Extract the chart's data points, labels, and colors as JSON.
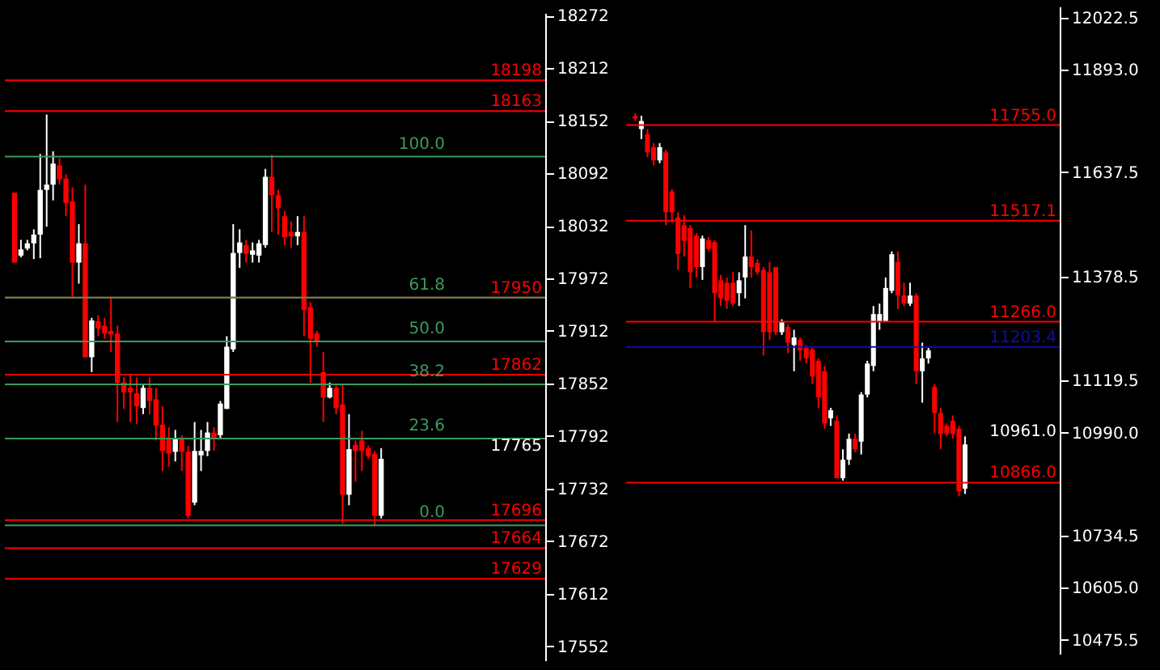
{
  "chart_data": [
    {
      "type": "candlestick",
      "tick_labels": "y",
      "categories": [
        null,
        null,
        null,
        null,
        null,
        null,
        null,
        null,
        null,
        null,
        null,
        null,
        null,
        null,
        null,
        null,
        null,
        null,
        null,
        null,
        null,
        null,
        null,
        null,
        null,
        null,
        null,
        null,
        null,
        null,
        null,
        null,
        null,
        null,
        null,
        null,
        null,
        null,
        null,
        null,
        null,
        null,
        null,
        null,
        null,
        null,
        null,
        null,
        null,
        null,
        null,
        null,
        null,
        null,
        null,
        null,
        null,
        null,
        null,
        null,
        null,
        null,
        null,
        null,
        null,
        null,
        null,
        null,
        null,
        null,
        null,
        null,
        null,
        null,
        null,
        null,
        null,
        null,
        null,
        null,
        null,
        null,
        null,
        null
      ],
      "ohlc": [
        null,
        [
          18070,
          18070,
          17990,
          17990
        ],
        [
          17998,
          18016,
          17996,
          18005
        ],
        [
          18006,
          18016,
          18004,
          18012
        ],
        [
          18012,
          18028,
          17994,
          18022
        ],
        [
          18022,
          18114,
          17995,
          18073
        ],
        [
          18073,
          18159,
          18031,
          18079
        ],
        [
          18079,
          18117,
          18061,
          18103
        ],
        [
          18101,
          18109,
          18079,
          18085
        ],
        [
          18086,
          18091,
          18043,
          18058
        ],
        [
          18060,
          18076,
          17951,
          17990
        ],
        [
          17990,
          18034,
          17966,
          18012
        ],
        [
          18012,
          18079,
          17882,
          17882
        ],
        [
          17882,
          17927,
          17865,
          17924
        ],
        [
          17923,
          17930,
          17906,
          17915
        ],
        [
          17918,
          17927,
          17903,
          17909
        ],
        [
          17912,
          17951,
          17888,
          17908
        ],
        [
          17909,
          17918,
          17808,
          17853
        ],
        [
          17853,
          17859,
          17823,
          17842
        ],
        [
          17847,
          17862,
          17808,
          17842
        ],
        [
          17841,
          17859,
          17806,
          17826
        ],
        [
          17824,
          17850,
          17817,
          17847
        ],
        [
          17847,
          17859,
          17817,
          17832
        ],
        [
          17834,
          17847,
          17787,
          17804
        ],
        [
          17805,
          17826,
          17752,
          17775
        ],
        [
          17790,
          17802,
          17757,
          17772
        ],
        [
          17774,
          17799,
          17763,
          17790
        ],
        [
          17790,
          17793,
          17752,
          17774
        ],
        [
          17774,
          17781,
          17698,
          17701
        ],
        [
          17716,
          17808,
          17713,
          17775
        ],
        [
          17770,
          17799,
          17752,
          17775
        ],
        [
          17775,
          17808,
          17769,
          17796
        ],
        [
          17796,
          17802,
          17775,
          17790
        ],
        [
          17793,
          17832,
          17790,
          17829
        ],
        [
          17823,
          17906,
          17823,
          17894
        ],
        [
          17891,
          18034,
          17888,
          18001
        ],
        [
          18001,
          18028,
          17984,
          18013
        ],
        [
          18010,
          18016,
          17990,
          18000
        ],
        [
          17999,
          18013,
          17990,
          18004
        ],
        [
          17998,
          18016,
          17990,
          18012
        ],
        [
          18010,
          18097,
          18007,
          18088
        ],
        [
          18088,
          18113,
          18025,
          18067
        ],
        [
          18067,
          18073,
          18022,
          18052
        ],
        [
          18043,
          18049,
          18010,
          18019
        ],
        [
          18025,
          18037,
          18007,
          18020
        ],
        [
          18020,
          18043,
          18010,
          18025
        ],
        [
          18025,
          18043,
          17906,
          17936
        ],
        [
          17939,
          17945,
          17853,
          17903
        ],
        [
          17909,
          17912,
          17894,
          17900
        ],
        [
          17865,
          17888,
          17808,
          17836
        ],
        [
          17836,
          17853,
          17835,
          17847
        ],
        [
          17847,
          17850,
          17817,
          17824
        ],
        [
          17828,
          17850,
          17692,
          17725
        ],
        [
          17725,
          17817,
          17713,
          17777
        ],
        [
          17782,
          17787,
          17740,
          17775
        ],
        [
          17787,
          17798,
          17752,
          17775
        ],
        [
          17778,
          17781,
          17766,
          17769
        ],
        [
          17772,
          17775,
          17689,
          17701
        ],
        [
          17701,
          17778,
          17698,
          17766
        ],
        null,
        null,
        null,
        null,
        null,
        null,
        null,
        null,
        null,
        null,
        null,
        null,
        null,
        null,
        null,
        null,
        null,
        null,
        null,
        null,
        null,
        null,
        null,
        null,
        null
      ],
      "colors": [
        null,
        "#ff0000",
        "#ffffff",
        "#ffffff",
        "#ffffff",
        "#ffffff",
        "#ffffff",
        "#ffffff",
        "#ff0000",
        "#ff0000",
        "#ff0000",
        "#ffffff",
        "#ff0000",
        "#ffffff",
        "#ff0000",
        "#ff0000",
        "#ff0000",
        "#ff0000",
        "#ff0000",
        "#ff0000",
        "#ff0000",
        "#ffffff",
        "#ff0000",
        "#ff0000",
        "#ff0000",
        "#ff0000",
        "#ffffff",
        "#ff0000",
        "#ff0000",
        "#ffffff",
        "#ffffff",
        "#ffffff",
        "#ff0000",
        "#ffffff",
        "#ffffff",
        "#ffffff",
        "#ffffff",
        "#ff0000",
        "#ffffff",
        "#ffffff",
        "#ffffff",
        "#ff0000",
        "#ff0000",
        "#ff0000",
        "#ff0000",
        "#ffffff",
        "#ff0000",
        "#ff0000",
        "#ff0000",
        "#ff0000",
        "#ffffff",
        "#ff0000",
        "#ff0000",
        "#ffffff",
        "#ff0000",
        "#ff0000",
        "#ff0000",
        "#ff0000",
        "#ffffff",
        null,
        null,
        null,
        null,
        null,
        null,
        null,
        null,
        null,
        null,
        null,
        null,
        null,
        null,
        null,
        null,
        null,
        null,
        null,
        null,
        null,
        null,
        null,
        null,
        null
      ],
      "ylim": [
        17536,
        18275
      ],
      "yticks": [
        17552,
        17612,
        17672,
        17732,
        17792,
        17852,
        17912,
        17972,
        18032,
        18092,
        18152,
        18212,
        18272
      ],
      "annotations": [
        "17765",
        {
          "text": "100.0",
          "y": 18111
        },
        {
          "text": "61.8",
          "y": 17950
        },
        {
          "text": "50.0",
          "y": 17900
        },
        {
          "text": "38.2",
          "y": 17851
        },
        {
          "text": "23.6",
          "y": 17789
        },
        {
          "text": "0.0",
          "y": 17690
        }
      ],
      "ref_lines": [
        {
          "axis": "y",
          "value": 18198,
          "label": "18198",
          "color": "#ff0000"
        },
        {
          "axis": "y",
          "value": 18163,
          "label": "18163",
          "color": "#ff0000"
        },
        {
          "axis": "y",
          "value": 17950,
          "label": "17950",
          "color": "#ff0000"
        },
        {
          "axis": "y",
          "value": 17862,
          "label": "17862",
          "color": "#ff0000"
        },
        {
          "axis": "y",
          "value": 17696,
          "label": "17696",
          "color": "#ff0000"
        },
        {
          "axis": "y",
          "value": 17664,
          "label": "17664",
          "color": "#ff0000"
        },
        {
          "axis": "y",
          "value": 17629,
          "label": "17629",
          "color": "#ff0000"
        },
        {
          "axis": "y",
          "value": 18111,
          "color": "#3c9a5f"
        },
        {
          "axis": "y",
          "value": 17950,
          "color": "#3c9a5f"
        },
        {
          "axis": "y",
          "value": 17900,
          "color": "#3c9a5f"
        },
        {
          "axis": "y",
          "value": 17851,
          "color": "#3c9a5f"
        },
        {
          "axis": "y",
          "value": 17789,
          "color": "#3c9a5f"
        },
        {
          "axis": "y",
          "value": 17690,
          "color": "#3c9a5f"
        }
      ]
    },
    {
      "type": "candlestick",
      "tick_labels": "y",
      "categories": [
        null,
        null,
        null,
        null,
        null,
        null,
        null,
        null,
        null,
        null,
        null,
        null,
        null,
        null,
        null,
        null,
        null,
        null,
        null,
        null,
        null,
        null,
        null,
        null,
        null,
        null,
        null,
        null,
        null,
        null,
        null,
        null,
        null,
        null,
        null,
        null,
        null,
        null,
        null,
        null,
        null,
        null,
        null,
        null,
        null,
        null,
        null,
        null,
        null,
        null,
        null,
        null,
        null,
        null,
        null,
        null,
        null,
        null,
        null,
        null,
        null,
        null,
        null,
        null,
        null,
        null,
        null,
        null,
        null,
        null,
        null
      ],
      "ohlc": [
        null,
        [
          11777,
          11784,
          11765,
          11771
        ],
        [
          11745,
          11778,
          11720,
          11765
        ],
        [
          11732,
          11745,
          11675,
          11687
        ],
        [
          11700,
          11710,
          11655,
          11667
        ],
        [
          11667,
          11710,
          11660,
          11700
        ],
        [
          11687,
          11693,
          11506,
          11538
        ],
        [
          11590,
          11596,
          11512,
          11538
        ],
        [
          11525,
          11538,
          11395,
          11434
        ],
        [
          11506,
          11531,
          11428,
          11467
        ],
        [
          11499,
          11506,
          11350,
          11389
        ],
        [
          11480,
          11486,
          11376,
          11402
        ],
        [
          11402,
          11480,
          11370,
          11473
        ],
        [
          11469,
          11477,
          11441,
          11447
        ],
        [
          11464,
          11469,
          11266,
          11337
        ],
        [
          11369,
          11382,
          11305,
          11324
        ],
        [
          11363,
          11376,
          11298,
          11318
        ],
        [
          11363,
          11389,
          11305,
          11311
        ],
        [
          11337,
          11389,
          11305,
          11369
        ],
        [
          11376,
          11506,
          11324,
          11428
        ],
        [
          11428,
          11493,
          11376,
          11402
        ],
        [
          11412,
          11421,
          11382,
          11389
        ],
        [
          11395,
          11402,
          11182,
          11240
        ],
        [
          11389,
          11415,
          11221,
          11240
        ],
        [
          11402,
          11402,
          11233,
          11240
        ],
        [
          11240,
          11272,
          11233,
          11266
        ],
        [
          11253,
          11259,
          11188,
          11214
        ],
        [
          11208,
          11246,
          11143,
          11227
        ],
        [
          11221,
          11227,
          11169,
          11195
        ],
        [
          11201,
          11208,
          11162,
          11175
        ],
        [
          11197,
          11201,
          11111,
          11130
        ],
        [
          11169,
          11175,
          11052,
          11078
        ],
        [
          11143,
          11156,
          11000,
          11013
        ],
        [
          11026,
          11052,
          11007,
          11046
        ],
        [
          11020,
          11033,
          10877,
          10877
        ],
        [
          10877,
          10949,
          10871,
          10923
        ],
        [
          10923,
          10988,
          10910,
          10975
        ],
        [
          10975,
          10988,
          10942,
          10949
        ],
        [
          10968,
          11091,
          10936,
          11085
        ],
        [
          11085,
          11169,
          11078,
          11162
        ],
        [
          11156,
          11305,
          11143,
          11285
        ],
        [
          11266,
          11311,
          11246,
          11285
        ],
        [
          11266,
          11376,
          11266,
          11350
        ],
        [
          11343,
          11441,
          11337,
          11434
        ],
        [
          11415,
          11441,
          11298,
          11331
        ],
        [
          11331,
          11363,
          11305,
          11311
        ],
        [
          11311,
          11363,
          11305,
          11331
        ],
        [
          11331,
          11337,
          11111,
          11143
        ],
        [
          11143,
          11214,
          11065,
          11175
        ],
        [
          11175,
          11201,
          11162,
          11195
        ],
        [
          11104,
          11111,
          10988,
          11039
        ],
        [
          11039,
          11052,
          10949,
          10987
        ],
        [
          11007,
          11013,
          10981,
          10987
        ],
        [
          11020,
          11033,
          10975,
          10987
        ],
        [
          11000,
          11007,
          10832,
          10845
        ],
        [
          10851,
          10981,
          10838,
          10961
        ],
        null,
        null,
        null,
        null,
        null,
        null,
        null,
        null,
        null,
        null,
        null,
        null,
        null,
        null,
        null
      ],
      "colors": [
        null,
        "#ff0000",
        "#ffffff",
        "#ff0000",
        "#ff0000",
        "#ffffff",
        "#ff0000",
        "#ff0000",
        "#ff0000",
        "#ff0000",
        "#ff0000",
        "#ff0000",
        "#ffffff",
        "#ff0000",
        "#ff0000",
        "#ff0000",
        "#ff0000",
        "#ff0000",
        "#ffffff",
        "#ffffff",
        "#ff0000",
        "#ff0000",
        "#ff0000",
        "#ff0000",
        "#ff0000",
        "#ffffff",
        "#ff0000",
        "#ffffff",
        "#ff0000",
        "#ff0000",
        "#ff0000",
        "#ff0000",
        "#ff0000",
        "#ffffff",
        "#ff0000",
        "#ffffff",
        "#ffffff",
        "#ff0000",
        "#ffffff",
        "#ffffff",
        "#ffffff",
        "#ffffff",
        "#ffffff",
        "#ffffff",
        "#ff0000",
        "#ff0000",
        "#ffffff",
        "#ff0000",
        "#ffffff",
        "#ffffff",
        "#ff0000",
        "#ff0000",
        "#ff0000",
        "#ff0000",
        "#ff0000",
        "#ffffff",
        null,
        null,
        null,
        null,
        null,
        null,
        null,
        null,
        null,
        null,
        null,
        null,
        null,
        null,
        null
      ],
      "ylim": [
        10440.5,
        12049.7
      ],
      "yticks": [
        10475.5,
        {
          "value": 10605,
          "label": "10605.0"
        },
        10734.5,
        {
          "value": 10990,
          "label": "10990.0"
        },
        11119.5,
        11378.5,
        11637.5,
        {
          "value": 11893,
          "label": "11893.0"
        },
        12022.5
      ],
      "annotations": [
        "10961.0"
      ],
      "ref_lines": [
        {
          "axis": "y",
          "value": 11755.0,
          "label": "11755.0",
          "color": "#ff0000"
        },
        {
          "axis": "y",
          "value": 11517.1,
          "label": "11517.1",
          "color": "#ff0000"
        },
        {
          "axis": "y",
          "value": 11266.0,
          "label": "11266.0",
          "color": "#ff0000"
        },
        {
          "axis": "y",
          "value": 11203.4,
          "label": "11203.4",
          "color": "#1010a0"
        },
        {
          "axis": "y",
          "value": 10866.0,
          "label": "10866.0",
          "color": "#ff0000"
        }
      ]
    }
  ]
}
